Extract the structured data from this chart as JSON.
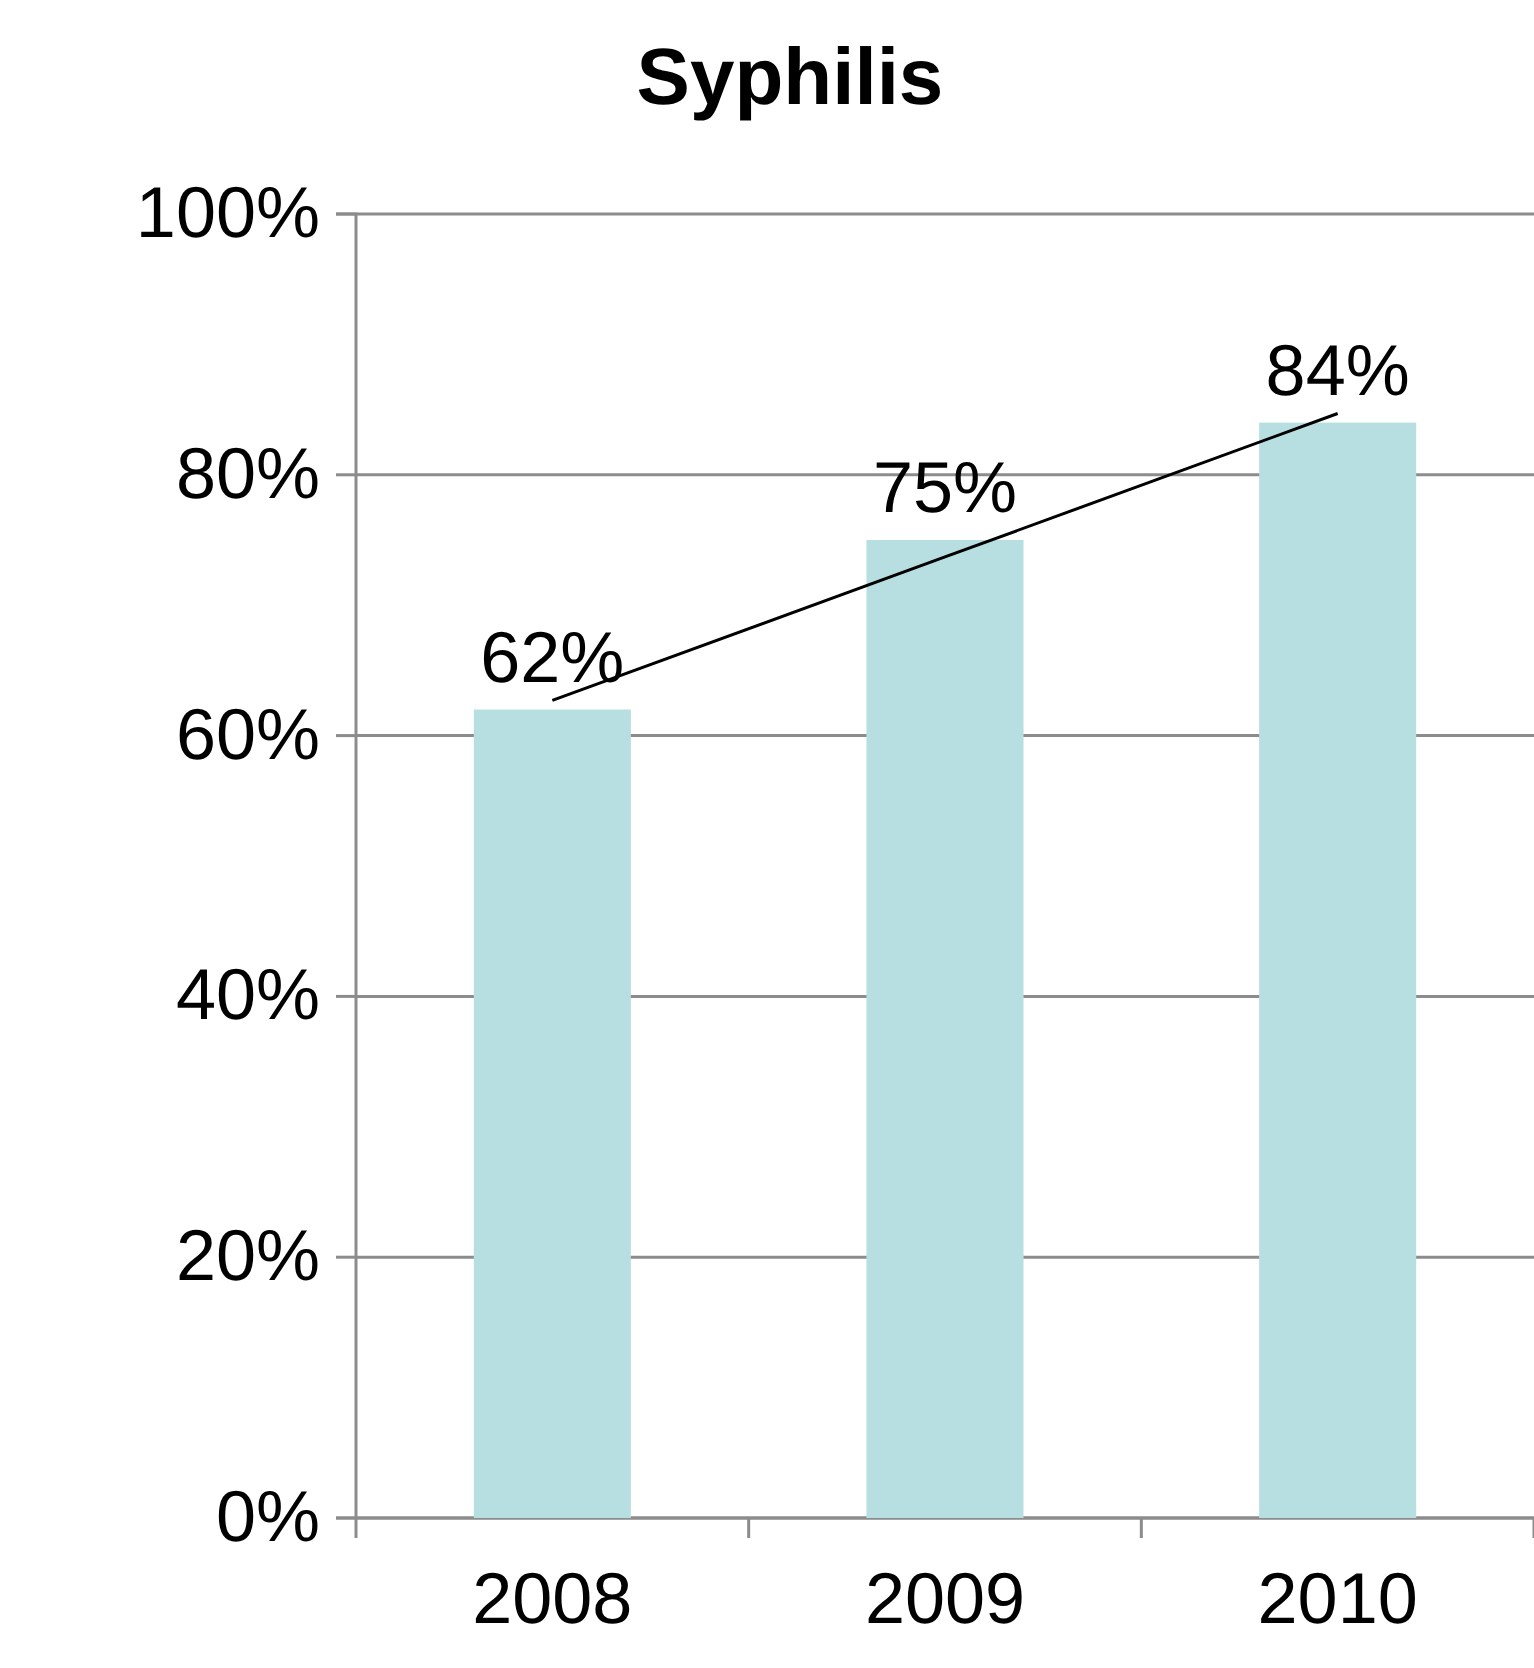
{
  "chart_data": {
    "type": "bar",
    "title": "Syphilis",
    "categories": [
      "2008",
      "2009",
      "2010"
    ],
    "series": [
      {
        "color": "#b7dfe1",
        "values": [
          62,
          75,
          84
        ],
        "value_labels": [
          "62%",
          "75%",
          "84%"
        ]
      },
      {
        "type": "line",
        "color": "#000000",
        "values": [
          62.7,
          73.7,
          84.7
        ]
      }
    ],
    "ylim": [
      0,
      100
    ],
    "yticks": [
      {
        "value": 0,
        "label": "0%"
      },
      {
        "value": 20,
        "label": "20%"
      },
      {
        "value": 40,
        "label": "40%"
      },
      {
        "value": 60,
        "label": "60%"
      },
      {
        "value": 80,
        "label": "80%"
      },
      {
        "value": 100,
        "label": "100%"
      }
    ],
    "grid": "y"
  }
}
